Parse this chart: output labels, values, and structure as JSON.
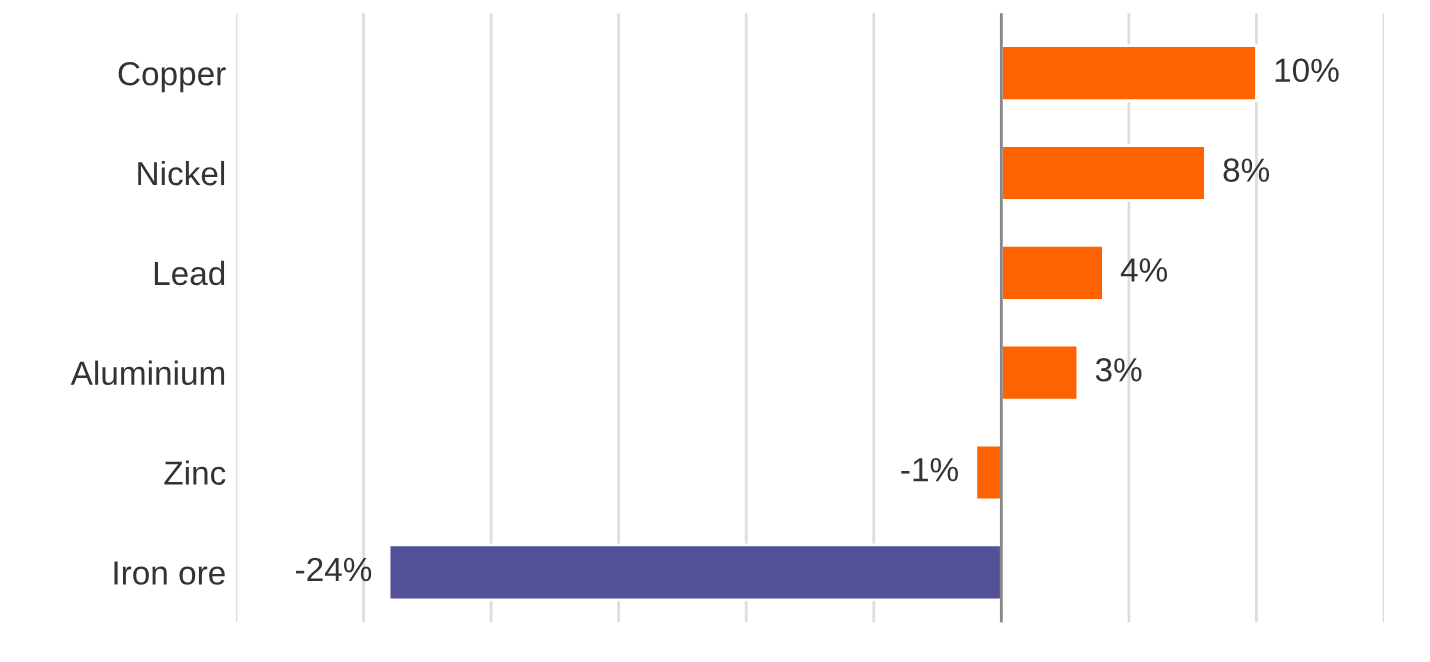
{
  "chart_data": {
    "type": "bar",
    "orientation": "horizontal",
    "categories": [
      "Copper",
      "Nickel",
      "Lead",
      "Aluminium",
      "Zinc",
      "Iron ore"
    ],
    "values": [
      10,
      8,
      4,
      3,
      -1,
      -24
    ],
    "colors": [
      "#ff6200",
      "#ff6200",
      "#ff6200",
      "#ff6200",
      "#ff6200",
      "#525199"
    ],
    "value_labels": [
      "10%",
      "8%",
      "4%",
      "3%",
      "-1%",
      "-24%"
    ],
    "xlim": [
      -30,
      15
    ],
    "xticks": [
      {
        "value": -30,
        "label": null
      },
      {
        "value": -25,
        "label": null
      },
      {
        "value": -20,
        "label": null
      },
      {
        "value": -15,
        "label": null
      },
      {
        "value": -10,
        "label": null
      },
      {
        "value": -5,
        "label": null
      },
      {
        "value": 0,
        "label": null
      },
      {
        "value": 5,
        "label": null
      },
      {
        "value": 10,
        "label": null
      },
      {
        "value": 15,
        "label": null
      }
    ],
    "grid": "x",
    "tick_labels": "y"
  }
}
